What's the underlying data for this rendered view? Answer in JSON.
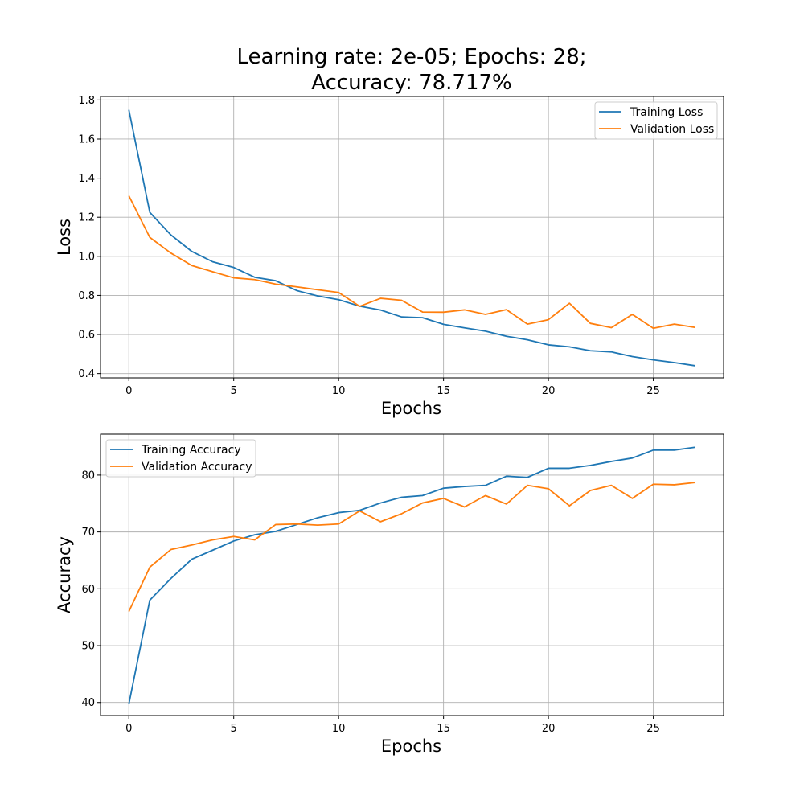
{
  "figure": {
    "title_line1": "Learning rate: 2e-05; Epochs: 28;",
    "title_line2": "Accuracy: 78.717%"
  },
  "colors": {
    "training": "#1f77b4",
    "validation": "#ff7f0e",
    "grid": "#b0b0b0"
  },
  "chart_data": [
    {
      "type": "line",
      "xlabel": "Epochs",
      "ylabel": "Loss",
      "xlim": [
        -1.35,
        28.35
      ],
      "ylim": [
        0.378,
        1.818
      ],
      "xticks": [
        0,
        5,
        10,
        15,
        20,
        25
      ],
      "yticks": [
        0.4,
        0.6,
        0.8,
        1.0,
        1.2,
        1.4,
        1.6,
        1.8
      ],
      "ytick_labels": [
        "0.4",
        "0.6",
        "0.8",
        "1.0",
        "1.2",
        "1.4",
        "1.6",
        "1.8"
      ],
      "grid": true,
      "legend_position": "upper right",
      "x": [
        0,
        1,
        2,
        3,
        4,
        5,
        6,
        7,
        8,
        9,
        10,
        11,
        12,
        13,
        14,
        15,
        16,
        17,
        18,
        19,
        20,
        21,
        22,
        23,
        24,
        25,
        26,
        27
      ],
      "series": [
        {
          "name": "Training Loss",
          "color_key": "training",
          "values": [
            1.75,
            1.225,
            1.11,
            1.025,
            0.972,
            0.943,
            0.893,
            0.875,
            0.825,
            0.797,
            0.778,
            0.745,
            0.725,
            0.69,
            0.686,
            0.652,
            0.634,
            0.617,
            0.591,
            0.573,
            0.547,
            0.537,
            0.517,
            0.511,
            0.487,
            0.47,
            0.456,
            0.44
          ]
        },
        {
          "name": "Validation Loss",
          "color_key": "validation",
          "values": [
            1.31,
            1.097,
            1.017,
            0.953,
            0.921,
            0.89,
            0.881,
            0.858,
            0.844,
            0.829,
            0.815,
            0.744,
            0.785,
            0.775,
            0.715,
            0.714,
            0.726,
            0.703,
            0.727,
            0.653,
            0.676,
            0.76,
            0.657,
            0.635,
            0.703,
            0.632,
            0.653,
            0.636
          ]
        }
      ]
    },
    {
      "type": "line",
      "xlabel": "Epochs",
      "ylabel": "Accuracy",
      "xlim": [
        -1.35,
        28.35
      ],
      "ylim": [
        37.7,
        87.2
      ],
      "xticks": [
        0,
        5,
        10,
        15,
        20,
        25
      ],
      "yticks": [
        40,
        50,
        60,
        70,
        80
      ],
      "ytick_labels": [
        "40",
        "50",
        "60",
        "70",
        "80"
      ],
      "grid": true,
      "legend_position": "upper left",
      "x": [
        0,
        1,
        2,
        3,
        4,
        5,
        6,
        7,
        8,
        9,
        10,
        11,
        12,
        13,
        14,
        15,
        16,
        17,
        18,
        19,
        20,
        21,
        22,
        23,
        24,
        25,
        26,
        27
      ],
      "series": [
        {
          "name": "Training Accuracy",
          "color_key": "training",
          "values": [
            39.7,
            58.0,
            61.8,
            65.2,
            66.8,
            68.4,
            69.5,
            70.1,
            71.3,
            72.5,
            73.4,
            73.8,
            75.1,
            76.1,
            76.4,
            77.7,
            78.0,
            78.2,
            79.8,
            79.6,
            81.2,
            81.2,
            81.7,
            82.4,
            83.0,
            84.4,
            84.4,
            84.9
          ]
        },
        {
          "name": "Validation Accuracy",
          "color_key": "validation",
          "values": [
            56.0,
            63.8,
            66.9,
            67.7,
            68.6,
            69.2,
            68.6,
            71.3,
            71.4,
            71.2,
            71.4,
            73.7,
            71.8,
            73.2,
            75.1,
            75.9,
            74.4,
            76.4,
            74.9,
            78.2,
            77.6,
            74.6,
            77.3,
            78.2,
            75.9,
            78.4,
            78.3,
            78.7
          ]
        }
      ]
    }
  ]
}
